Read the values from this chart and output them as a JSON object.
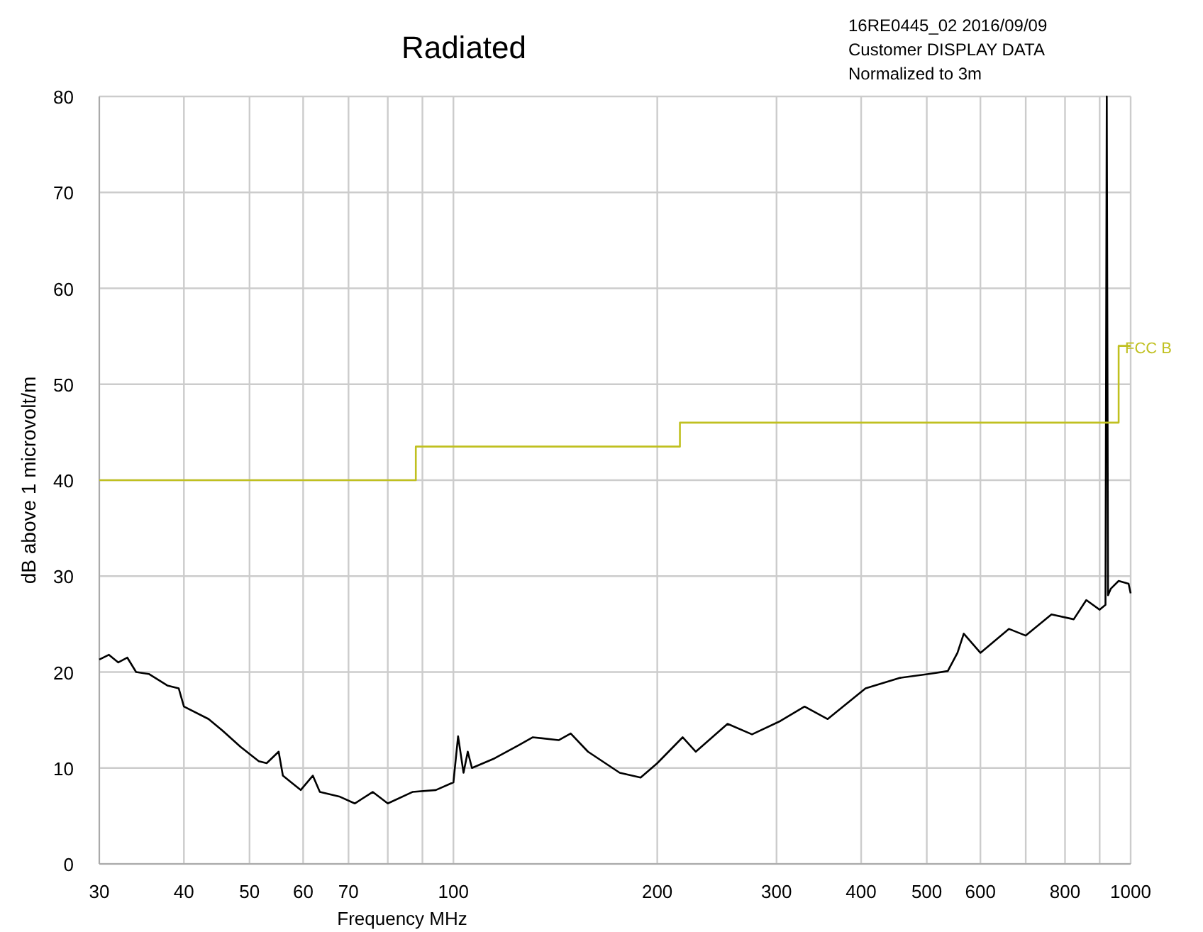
{
  "chart_data": {
    "type": "line",
    "title": "Radiated",
    "xlabel": "Frequency  MHz",
    "ylabel": "dB above 1 microvolt/m",
    "annotations": [
      "16RE0445_02 2016/09/09",
      "Customer DISPLAY DATA",
      "Normalized to 3m"
    ],
    "log": "x",
    "grid": true,
    "legend": false,
    "marker": "none",
    "line_style": "solid",
    "xlim": [
      30,
      1000
    ],
    "ylim": [
      0,
      80
    ],
    "xticks": [
      30,
      40,
      50,
      60,
      70,
      {
        "value": 80,
        "label": null
      },
      {
        "value": 90,
        "label": null
      },
      100,
      200,
      300,
      400,
      500,
      600,
      {
        "value": 700,
        "label": null
      },
      800,
      {
        "value": 900,
        "label": null
      },
      1000
    ],
    "yticks": [
      0,
      10,
      20,
      30,
      40,
      50,
      60,
      70,
      80
    ],
    "series": [
      {
        "color": "#000000",
        "x": [
          30,
          31,
          32,
          33,
          34,
          35.5,
          37.8,
          39.3,
          40,
          43.5,
          45.6,
          48.5,
          51.6,
          53,
          55.2,
          56,
          57.6,
          59.5,
          62,
          63.5,
          68,
          71.5,
          76,
          80,
          87,
          94.2,
          100,
          101.6,
          103.5,
          105,
          106.5,
          115,
          125,
          131,
          143,
          149,
          158,
          176,
          189,
          200,
          218,
          228,
          254,
          276,
          304,
          330,
          357,
          406,
          457,
          503,
          537,
          555,
          567,
          600,
          661,
          700,
          764,
          824,
          860,
          900,
          918,
          922,
          926,
          935,
          960,
          993,
          1000
        ],
        "values": [
          21.3,
          21.8,
          21,
          21.5,
          20,
          19.8,
          18.6,
          18.3,
          16.4,
          15.1,
          13.9,
          12.2,
          10.7,
          10.5,
          11.7,
          9.2,
          8.5,
          7.7,
          9.2,
          7.5,
          7,
          6.3,
          7.5,
          6.3,
          7.5,
          7.7,
          8.5,
          13.3,
          9.5,
          11.7,
          10,
          11,
          12.4,
          13.2,
          12.9,
          13.6,
          11.7,
          9.5,
          9,
          10.5,
          13.2,
          11.7,
          14.6,
          13.5,
          14.9,
          16.4,
          15.1,
          18.3,
          19.4,
          19.8,
          20.1,
          22,
          24,
          22,
          24.5,
          23.8,
          26,
          25.5,
          27.5,
          26.5,
          27,
          80,
          28,
          28.7,
          29.5,
          29.2,
          28.2
        ]
      },
      {
        "name": "FCC B",
        "color": "#c0c020",
        "x": [
          30,
          88,
          88,
          216,
          216,
          960,
          960,
          1000
        ],
        "values": [
          40,
          40,
          43.5,
          43.5,
          46,
          46,
          54,
          54
        ]
      }
    ]
  }
}
